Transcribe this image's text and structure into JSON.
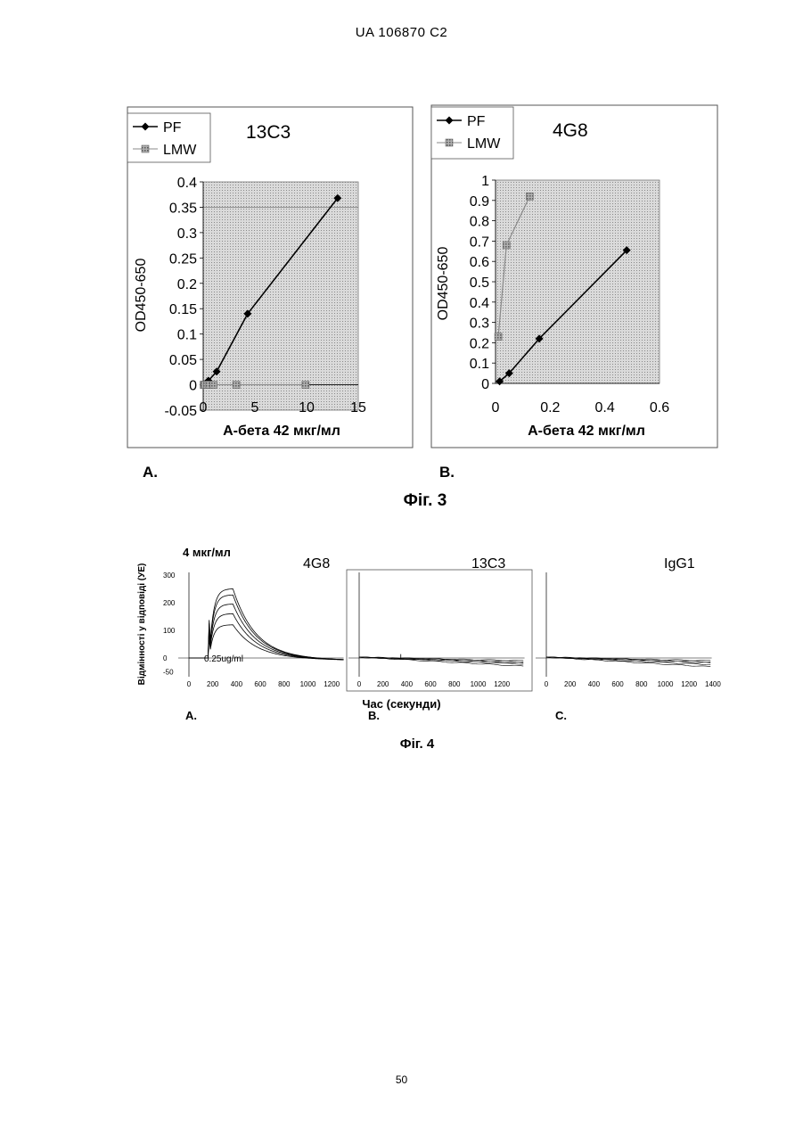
{
  "header": {
    "text": "UA   106870   C2"
  },
  "page_number": "50",
  "figure3": {
    "label": "Фіг. 3",
    "panel_a_label": "A.",
    "panel_b_label": "B."
  },
  "figure4": {
    "label": "Фіг. 4",
    "concentration": "4 мкг/мл",
    "xlabel": "Час (секунди)",
    "ylabel": "Відмінності у відповіді (УЕ)",
    "panel_a_label": "A.",
    "panel_b_label": "B.",
    "panel_c_label": "C.",
    "annotation": "0.25ug/ml"
  },
  "chart_data": [
    {
      "type": "line",
      "title": "13C3",
      "xlabel": "А-бета 42 мкг/мл",
      "ylabel": "OD450-650",
      "xlim": [
        0,
        15
      ],
      "ylim": [
        -0.05,
        0.4
      ],
      "xticks": [
        "0",
        "5",
        "10",
        "15"
      ],
      "yticks": [
        "-0.05",
        "0",
        "0.05",
        "0.1",
        "0.15",
        "0.2",
        "0.25",
        "0.3",
        "0.35",
        "0.4"
      ],
      "legend": "top-left",
      "series": [
        {
          "name": "PF",
          "color": "#000000",
          "x": [
            0.05,
            0.1,
            0.2,
            0.4,
            0.5,
            1.3,
            4.3,
            13.0
          ],
          "y": [
            0.0,
            0.0,
            0.002,
            0.005,
            0.008,
            0.026,
            0.14,
            0.368
          ]
        },
        {
          "name": "LMW",
          "color": "#8a8a8a",
          "x": [
            0.05,
            0.1,
            0.2,
            0.4,
            0.6,
            1.0,
            3.2,
            9.9
          ],
          "y": [
            0.0,
            0.0,
            0.0,
            0.0,
            0.0,
            0.0,
            0.0,
            0.0
          ]
        }
      ]
    },
    {
      "type": "line",
      "title": "4G8",
      "xlabel": "А-бета 42 мкг/мл",
      "ylabel": "OD450-650",
      "xlim": [
        0,
        0.6
      ],
      "ylim": [
        0,
        1
      ],
      "xticks": [
        "0",
        "0.2",
        "0.4",
        "0.6"
      ],
      "yticks": [
        "0",
        "0.1",
        "0.2",
        "0.3",
        "0.4",
        "0.5",
        "0.6",
        "0.7",
        "0.8",
        "0.9",
        "1"
      ],
      "legend": "top-left",
      "series": [
        {
          "name": "PF",
          "color": "#000000",
          "x": [
            0.015,
            0.05,
            0.16,
            0.48
          ],
          "y": [
            0.01,
            0.05,
            0.22,
            0.655
          ]
        },
        {
          "name": "LMW",
          "color": "#8a8a8a",
          "x": [
            0.01,
            0.04,
            0.125
          ],
          "y": [
            0.23,
            0.68,
            0.92
          ]
        }
      ]
    },
    {
      "type": "line",
      "title": "4G8",
      "xlim": [
        0,
        1300
      ],
      "ylim": [
        -50,
        300
      ],
      "xticks": [
        "0",
        "200",
        "400",
        "600",
        "800",
        "1000",
        "1200"
      ],
      "yticks": [
        "300",
        "200",
        "100",
        "0",
        "-50"
      ],
      "peaks": [
        250,
        228,
        195,
        160,
        120
      ]
    },
    {
      "type": "line",
      "title": "13C3",
      "xlim": [
        0,
        1400
      ],
      "xticks": [
        "0",
        "200",
        "400",
        "600",
        "800",
        "1000",
        "1200"
      ],
      "ends": [
        -10,
        -14,
        -18,
        -22,
        -30
      ]
    },
    {
      "type": "line",
      "title": "IgG1",
      "xlim": [
        0,
        1400
      ],
      "xticks": [
        "0",
        "200",
        "400",
        "600",
        "800",
        "1000",
        "1200",
        "1400"
      ],
      "ends": [
        -10,
        -14,
        -18,
        -24,
        -32
      ]
    }
  ]
}
